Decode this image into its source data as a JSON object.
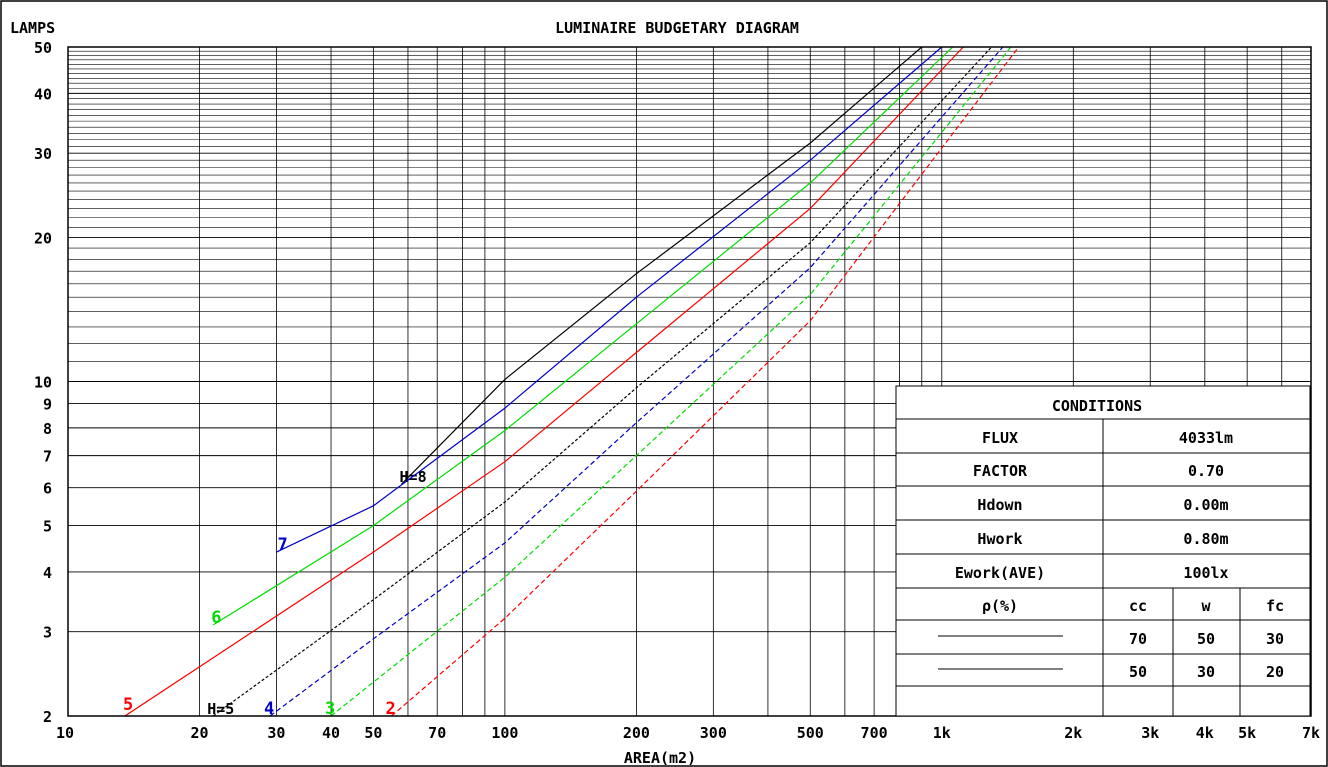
{
  "chart_data": {
    "type": "line",
    "title": "LUMINAIRE BUDGETARY DIAGRAM",
    "ylabel": "LAMPS",
    "xlabel": "AREA(m2)",
    "x_scale": "log",
    "y_scale": "log",
    "xlim": [
      10,
      7000
    ],
    "ylim": [
      2,
      50
    ],
    "x_ticks": [
      {
        "value": 10,
        "label": "10"
      },
      {
        "value": 20,
        "label": "20"
      },
      {
        "value": 30,
        "label": "30"
      },
      {
        "value": 40,
        "label": "40"
      },
      {
        "value": 50,
        "label": "50"
      },
      {
        "value": 70,
        "label": "70"
      },
      {
        "value": 100,
        "label": "100"
      },
      {
        "value": 200,
        "label": "200"
      },
      {
        "value": 300,
        "label": "300"
      },
      {
        "value": 500,
        "label": "500"
      },
      {
        "value": 700,
        "label": "700"
      },
      {
        "value": 1000,
        "label": "1k"
      },
      {
        "value": 2000,
        "label": "2k"
      },
      {
        "value": 3000,
        "label": "3k"
      },
      {
        "value": 4000,
        "label": "4k"
      },
      {
        "value": 5000,
        "label": "5k"
      },
      {
        "value": 7000,
        "label": "7k"
      }
    ],
    "y_ticks": [
      {
        "value": 2,
        "label": "2"
      },
      {
        "value": 3,
        "label": "3"
      },
      {
        "value": 4,
        "label": "4"
      },
      {
        "value": 5,
        "label": "5"
      },
      {
        "value": 6,
        "label": "6"
      },
      {
        "value": 7,
        "label": "7"
      },
      {
        "value": 8,
        "label": "8"
      },
      {
        "value": 9,
        "label": "9"
      },
      {
        "value": 10,
        "label": "10"
      },
      {
        "value": 20,
        "label": "20"
      },
      {
        "value": 30,
        "label": "30"
      },
      {
        "value": 40,
        "label": "40"
      },
      {
        "value": 50,
        "label": "50"
      }
    ],
    "series": [
      {
        "label": "H=8",
        "color": "#000000",
        "style": "solid",
        "label_at": [
          20,
          2.3
        ],
        "points": [
          [
            58,
            6.1
          ],
          [
            100,
            10.1
          ],
          [
            200,
            16.8
          ],
          [
            500,
            31.5
          ],
          [
            900,
            50
          ]
        ]
      },
      {
        "label": "7",
        "color": "#0000c8",
        "style": "solid",
        "label_at": [
          22,
          2.0
        ],
        "points": [
          [
            30,
            4.4
          ],
          [
            50,
            5.5
          ],
          [
            100,
            8.8
          ],
          [
            200,
            15
          ],
          [
            500,
            29
          ],
          [
            1000,
            50
          ]
        ]
      },
      {
        "label": "6",
        "color": "#00dd00",
        "style": "solid",
        "label_at": [
          21.5,
          3.05
        ],
        "points": [
          [
            21.5,
            3.1
          ],
          [
            50,
            5.0
          ],
          [
            100,
            7.9
          ],
          [
            200,
            13.2
          ],
          [
            500,
            26
          ],
          [
            1060,
            50
          ]
        ]
      },
      {
        "label": "5",
        "color": "#ff0000",
        "style": "solid",
        "label_at": [
          13.5,
          1.98
        ],
        "points": [
          [
            13.5,
            2.0
          ],
          [
            50,
            4.4
          ],
          [
            100,
            6.8
          ],
          [
            200,
            11.5
          ],
          [
            500,
            23
          ],
          [
            1120,
            50
          ]
        ]
      },
      {
        "label": "H=5",
        "color": "#000000",
        "style": "dashed",
        "label_at": [
          3.5,
          1.98
        ],
        "points": [
          [
            21.5,
            2.0
          ],
          [
            50,
            3.5
          ],
          [
            100,
            5.6
          ],
          [
            200,
            9.7
          ],
          [
            500,
            19.5
          ],
          [
            1300,
            50
          ]
        ]
      },
      {
        "label": "4",
        "color": "#0000c8",
        "style": "dashed",
        "label_at": [
          30,
          1.98
        ],
        "points": [
          [
            29,
            2.0
          ],
          [
            50,
            2.9
          ],
          [
            100,
            4.6
          ],
          [
            200,
            8.2
          ],
          [
            500,
            17.3
          ],
          [
            1380,
            50
          ]
        ]
      },
      {
        "label": "3",
        "color": "#00dd00",
        "style": "dashed",
        "label_at": [
          40,
          1.98
        ],
        "points": [
          [
            40,
            2.0
          ],
          [
            100,
            3.9
          ],
          [
            200,
            7.0
          ],
          [
            500,
            15.2
          ],
          [
            1440,
            50
          ]
        ]
      },
      {
        "label": "2",
        "color": "#ff0000",
        "style": "dashed",
        "label_at": [
          55,
          1.98
        ],
        "points": [
          [
            55,
            2.0
          ],
          [
            100,
            3.2
          ],
          [
            200,
            5.9
          ],
          [
            500,
            13.4
          ],
          [
            1500,
            50
          ]
        ]
      }
    ],
    "grid": true
  },
  "conditions": {
    "heading": "CONDITIONS",
    "rows": [
      {
        "label": "FLUX",
        "value": "4033lm"
      },
      {
        "label": "FACTOR",
        "value": "0.70"
      },
      {
        "label": "Hdown",
        "value": "0.00m"
      },
      {
        "label": "Hwork",
        "value": "0.80m"
      },
      {
        "label": "Ework(AVE)",
        "value": "100lx"
      }
    ],
    "rho_label": "ρ(%)",
    "reflectance_headers": [
      "cc",
      "w",
      "fc"
    ],
    "reflectance_rows": [
      [
        "70",
        "50",
        "30"
      ],
      [
        "50",
        "30",
        "20"
      ]
    ]
  }
}
